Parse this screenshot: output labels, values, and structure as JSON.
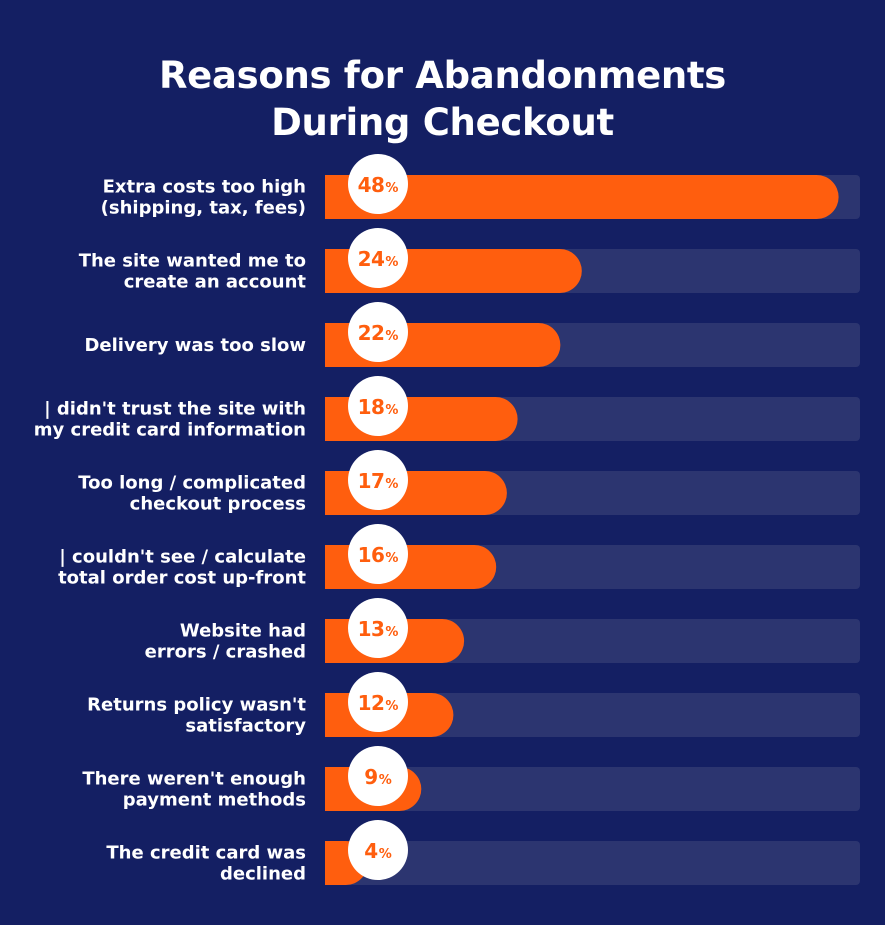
{
  "chart_data": {
    "type": "bar",
    "orientation": "horizontal",
    "title_lines": [
      "Reasons for Abandonments",
      "During Checkout"
    ],
    "categories": [
      [
        "Extra costs too high",
        "(shipping, tax, fees)"
      ],
      [
        "The site wanted me to",
        "create an account"
      ],
      [
        "Delivery was too slow"
      ],
      [
        "| didn't trust the site with",
        "my credit card information"
      ],
      [
        "Too long / complicated",
        "checkout process"
      ],
      [
        "| couldn't see / calculate",
        "total order cost up-front"
      ],
      [
        "Website had",
        "errors / crashed"
      ],
      [
        "Returns policy wasn't",
        "satisfactory"
      ],
      [
        "There weren't enough",
        "payment methods"
      ],
      [
        "The credit card was",
        "declined"
      ]
    ],
    "values": [
      48,
      24,
      22,
      18,
      17,
      16,
      13,
      12,
      9,
      4
    ],
    "value_suffix": "%",
    "xlim": [
      0,
      50
    ],
    "grid": false,
    "legend": "none"
  },
  "colors": {
    "background": "#141f63",
    "track": "#2c3570",
    "bar": "#ff5e0e",
    "badge": "#ffffff",
    "text": "#ffffff"
  }
}
